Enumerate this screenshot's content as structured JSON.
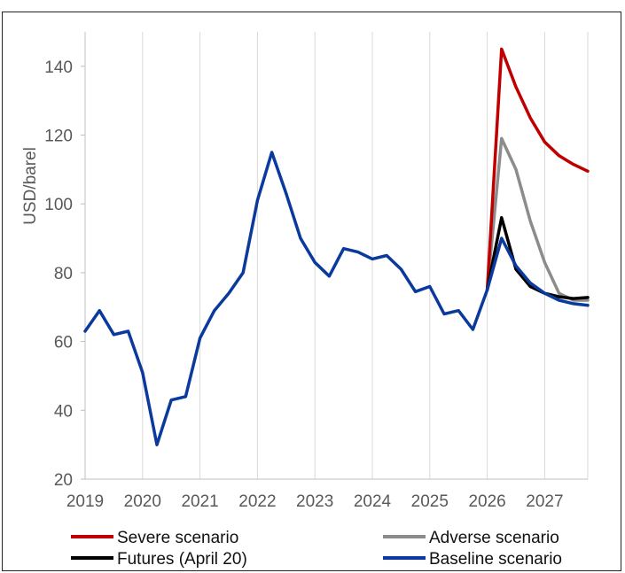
{
  "chart_data": {
    "type": "line",
    "ylabel": "USD/barel",
    "xlim": [
      2019,
      2027.75
    ],
    "ylim": [
      20,
      150
    ],
    "yticks": [
      20,
      40,
      60,
      80,
      100,
      120,
      140
    ],
    "xticks": [
      2019,
      2020,
      2021,
      2022,
      2023,
      2024,
      2025,
      2026,
      2027
    ],
    "xtick_labels": [
      "2019",
      "2020",
      "2021",
      "2022",
      "2023",
      "2024",
      "2025",
      "2026",
      "2027"
    ],
    "legend_position": "bottom",
    "series": [
      {
        "name": "Baseline scenario",
        "color": "#0b3a9e",
        "x": [
          2019,
          2019.25,
          2019.5,
          2019.75,
          2020,
          2020.25,
          2020.5,
          2020.75,
          2021,
          2021.25,
          2021.5,
          2021.75,
          2022,
          2022.25,
          2022.5,
          2022.75,
          2023,
          2023.25,
          2023.5,
          2023.75,
          2024,
          2024.25,
          2024.5,
          2024.75,
          2025,
          2025.25,
          2025.5,
          2025.75,
          2026,
          2026.25,
          2026.5,
          2026.75,
          2027,
          2027.25,
          2027.5,
          2027.75
        ],
        "values": [
          63,
          69,
          62,
          63,
          51,
          30,
          43,
          44,
          61,
          69,
          74,
          80,
          101,
          115,
          103,
          90,
          83,
          79,
          87,
          86,
          84,
          85,
          81,
          74.5,
          76,
          68,
          69,
          63.5,
          75,
          90,
          82,
          77,
          74,
          72,
          71,
          70.5
        ]
      },
      {
        "name": "Futures (April 20)",
        "color": "#000000",
        "x": [
          2026,
          2026.25,
          2026.5,
          2026.75,
          2027,
          2027.25,
          2027.5,
          2027.75
        ],
        "values": [
          75,
          96,
          81,
          76,
          74,
          73,
          72.5,
          72.8
        ]
      },
      {
        "name": "Adverse scenario",
        "color": "#8c8c8c",
        "x": [
          2026,
          2026.25,
          2026.5,
          2026.75,
          2027,
          2027.25,
          2027.5,
          2027.75
        ],
        "values": [
          75,
          119,
          110,
          95,
          83,
          74,
          72,
          72
        ]
      },
      {
        "name": "Severe scenario",
        "color": "#c00000",
        "x": [
          2026,
          2026.25,
          2026.5,
          2026.75,
          2027,
          2027.25,
          2027.5,
          2027.75
        ],
        "values": [
          75,
          145,
          134,
          125,
          118,
          114,
          111.5,
          109.5
        ]
      }
    ]
  },
  "legend": {
    "left": [
      {
        "label": "Severe scenario",
        "color": "#c00000"
      },
      {
        "label": "Futures (April 20)",
        "color": "#000000"
      }
    ],
    "right": [
      {
        "label": "Adverse scenario",
        "color": "#8c8c8c"
      },
      {
        "label": "Baseline scenario",
        "color": "#0b3a9e"
      }
    ]
  }
}
